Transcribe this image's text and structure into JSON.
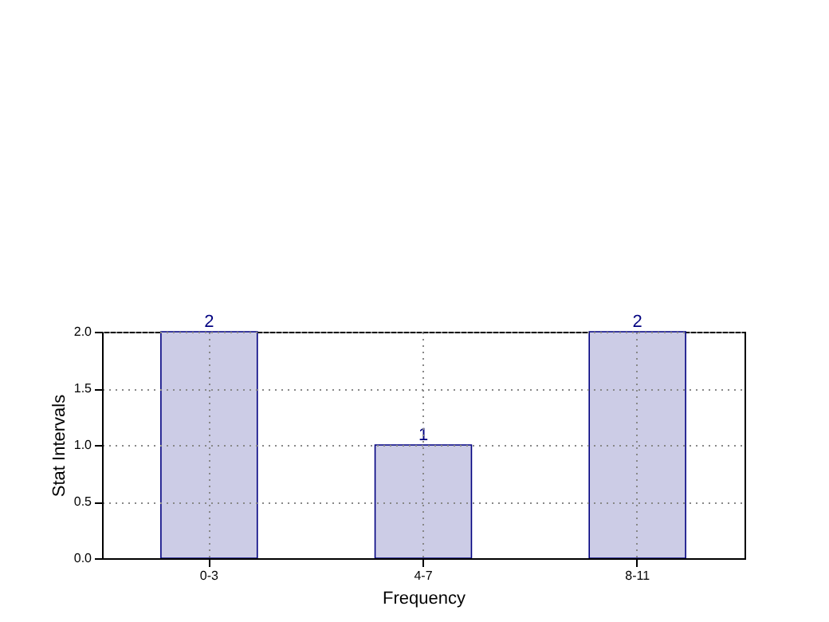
{
  "chart_data": {
    "type": "bar",
    "categories": [
      "0-3",
      "4-7",
      "8-11"
    ],
    "values": [
      2,
      1,
      2
    ],
    "color": "#cccce6",
    "xlabel": "Frequency",
    "ylabel": "Stat Intervals",
    "ylim": [
      0,
      2
    ],
    "yticks": [
      {
        "value": 0,
        "label": "0.0"
      },
      0.5,
      {
        "value": 1,
        "label": "1.0"
      },
      1.5,
      {
        "value": 2,
        "label": "2.0"
      }
    ],
    "grid": true,
    "data_labels": true
  }
}
